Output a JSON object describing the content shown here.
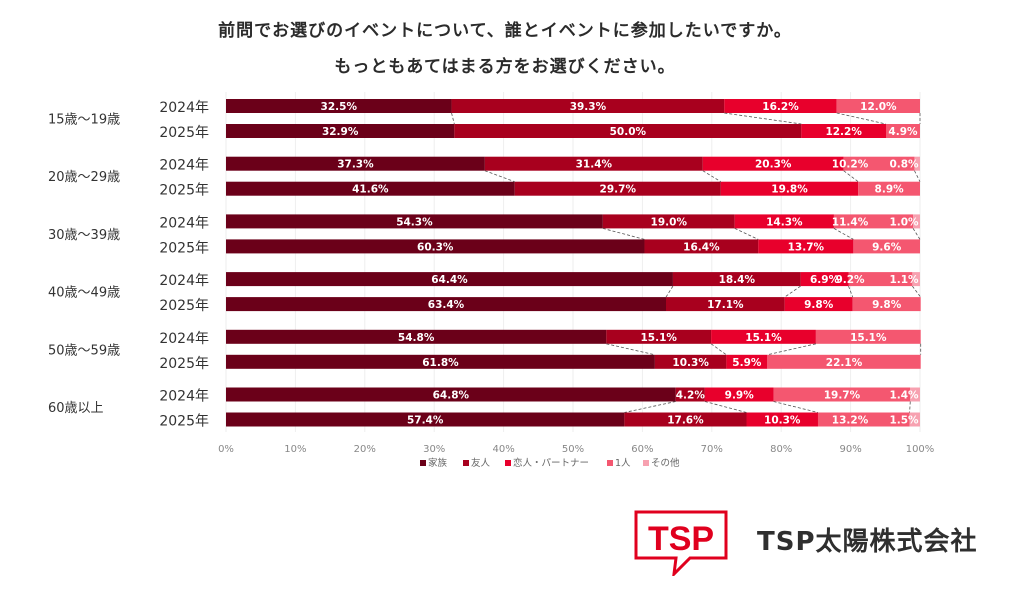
{
  "title_line1": "前問でお選びのイベントについて、誰とイベントに参加したいですか。",
  "title_line2": "もっともあてはまる方をお選びください。",
  "company_name": "TSP太陽株式会社",
  "logo_text": "TSP",
  "chart_data": {
    "type": "bar",
    "orientation": "horizontal-stacked-100",
    "groups": [
      {
        "label": "15歳〜19歳",
        "rows": [
          {
            "year": "2024年",
            "values": [
              32.5,
              39.3,
              16.2,
              12.0,
              0.0
            ],
            "labels": [
              "32.5%",
              "39.3%",
              "16.2%",
              "12.0%",
              ""
            ]
          },
          {
            "year": "2025年",
            "values": [
              32.9,
              50.0,
              12.2,
              4.9,
              0.0
            ],
            "labels": [
              "32.9%",
              "50.0%",
              "12.2%",
              "4.9%",
              ""
            ]
          }
        ]
      },
      {
        "label": "20歳〜29歳",
        "rows": [
          {
            "year": "2024年",
            "values": [
              37.3,
              31.4,
              20.3,
              10.2,
              0.8
            ],
            "labels": [
              "37.3%",
              "31.4%",
              "20.3%",
              "10.2%",
              "0.8%"
            ]
          },
          {
            "year": "2025年",
            "values": [
              41.6,
              29.7,
              19.8,
              8.9,
              0.0
            ],
            "labels": [
              "41.6%",
              "29.7%",
              "19.8%",
              "8.9%",
              ""
            ]
          }
        ]
      },
      {
        "label": "30歳〜39歳",
        "rows": [
          {
            "year": "2024年",
            "values": [
              54.3,
              19.0,
              14.3,
              11.4,
              1.0
            ],
            "labels": [
              "54.3%",
              "19.0%",
              "14.3%",
              "11.4%",
              "1.0%"
            ]
          },
          {
            "year": "2025年",
            "values": [
              60.3,
              16.4,
              13.7,
              9.6,
              0.0
            ],
            "labels": [
              "60.3%",
              "16.4%",
              "13.7%",
              "9.6%",
              ""
            ]
          }
        ]
      },
      {
        "label": "40歳〜49歳",
        "rows": [
          {
            "year": "2024年",
            "values": [
              64.4,
              18.4,
              6.9,
              9.2,
              1.1
            ],
            "labels": [
              "64.4%",
              "18.4%",
              "6.9%",
              "9.2%",
              "1.1%"
            ]
          },
          {
            "year": "2025年",
            "values": [
              63.4,
              17.1,
              9.8,
              9.8,
              0.0
            ],
            "labels": [
              "63.4%",
              "17.1%",
              "9.8%",
              "9.8%",
              ""
            ]
          }
        ]
      },
      {
        "label": "50歳〜59歳",
        "rows": [
          {
            "year": "2024年",
            "values": [
              54.8,
              15.1,
              15.1,
              15.1,
              0.0
            ],
            "labels": [
              "54.8%",
              "15.1%",
              "15.1%",
              "15.1%",
              ""
            ]
          },
          {
            "year": "2025年",
            "values": [
              61.8,
              10.3,
              5.9,
              22.1,
              0.0
            ],
            "labels": [
              "61.8%",
              "10.3%",
              "5.9%",
              "22.1%",
              ""
            ]
          }
        ]
      },
      {
        "label": "60歳以上",
        "rows": [
          {
            "year": "2024年",
            "values": [
              64.8,
              4.2,
              9.9,
              19.7,
              1.4
            ],
            "labels": [
              "64.8%",
              "4.2%",
              "9.9%",
              "19.7%",
              "1.4%"
            ]
          },
          {
            "year": "2025年",
            "values": [
              57.4,
              17.6,
              10.3,
              13.2,
              1.5
            ],
            "labels": [
              "57.4%",
              "17.6%",
              "10.3%",
              "13.2%",
              "1.5%"
            ]
          }
        ]
      }
    ],
    "series": [
      {
        "name": "家族",
        "color": "#6b0019"
      },
      {
        "name": "友人",
        "color": "#a8001e"
      },
      {
        "name": "恋人・パートナー",
        "color": "#e8002c"
      },
      {
        "name": "1人",
        "color": "#f45770"
      },
      {
        "name": "その他",
        "color": "#f7a1b0"
      }
    ],
    "x_ticks": [
      "0%",
      "10%",
      "20%",
      "30%",
      "40%",
      "50%",
      "60%",
      "70%",
      "80%",
      "90%",
      "100%"
    ],
    "xlim": [
      0,
      100
    ],
    "legend_position": "bottom"
  }
}
